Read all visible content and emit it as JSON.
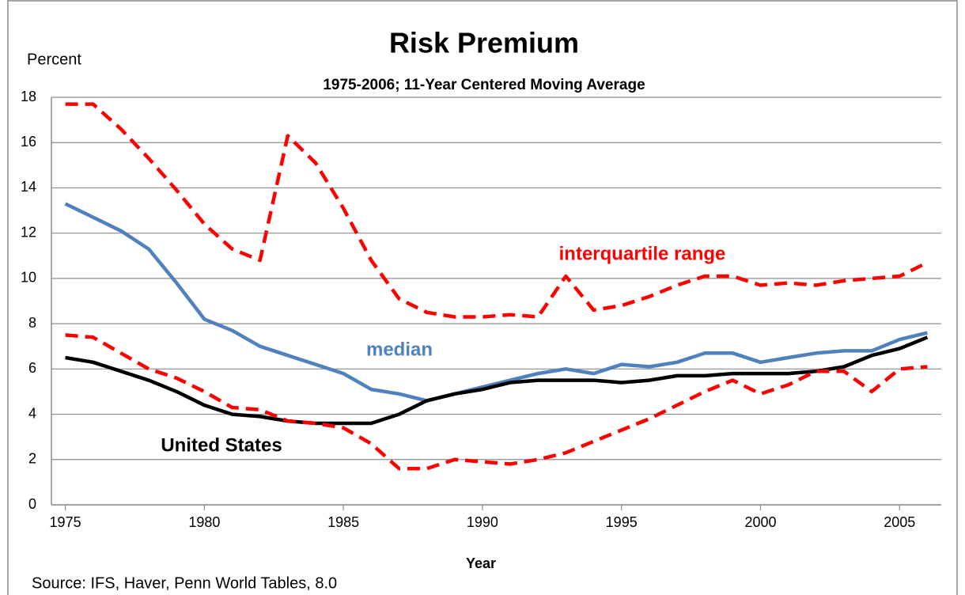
{
  "chart_data": {
    "type": "line",
    "title": "Risk Premium",
    "subtitle": "1975-2006; 11-Year Centered Moving Average",
    "y_axis_label": "Percent",
    "x_axis_label": "Year",
    "source": "Source: IFS, Haver, Penn World Tables, 8.0",
    "x": [
      1975,
      1976,
      1977,
      1978,
      1979,
      1980,
      1981,
      1982,
      1983,
      1984,
      1985,
      1986,
      1987,
      1988,
      1989,
      1990,
      1991,
      1992,
      1993,
      1994,
      1995,
      1996,
      1997,
      1998,
      1999,
      2000,
      2001,
      2002,
      2003,
      2004,
      2005,
      2006
    ],
    "xlim": [
      1974.5,
      2006.5
    ],
    "xticks": [
      1975,
      1980,
      1985,
      1990,
      1995,
      2000,
      2005
    ],
    "ylim": [
      0,
      18
    ],
    "yticks": [
      0,
      2,
      4,
      6,
      8,
      10,
      12,
      14,
      16,
      18
    ],
    "grid": true,
    "series": [
      {
        "name": "interquartile range",
        "color": "#ff0000",
        "dashed": true,
        "values": [
          17.7,
          17.7,
          16.6,
          15.3,
          13.9,
          12.4,
          11.3,
          10.8,
          16.3,
          15.1,
          13.1,
          10.8,
          9.1,
          8.5,
          8.3,
          8.3,
          8.4,
          8.3,
          10.1,
          8.6,
          8.8,
          9.2,
          9.7,
          10.1,
          10.1,
          9.7,
          9.8,
          9.7,
          9.9,
          10.0,
          10.1,
          10.7
        ]
      },
      {
        "name": "median",
        "color": "#4f81bd",
        "dashed": false,
        "values": [
          13.3,
          12.7,
          12.1,
          11.3,
          9.8,
          8.2,
          7.7,
          7.0,
          6.6,
          6.2,
          5.8,
          5.1,
          4.9,
          4.6,
          4.9,
          5.2,
          5.5,
          5.8,
          6.0,
          5.8,
          6.2,
          6.1,
          6.3,
          6.7,
          6.7,
          6.3,
          6.5,
          6.7,
          6.8,
          6.8,
          7.3,
          7.6
        ]
      },
      {
        "name": "United States",
        "color": "#000000",
        "dashed": false,
        "values": [
          6.5,
          6.3,
          5.9,
          5.5,
          5.0,
          4.4,
          4.0,
          3.9,
          3.7,
          3.6,
          3.6,
          3.6,
          4.0,
          4.6,
          4.9,
          5.1,
          5.4,
          5.5,
          5.5,
          5.5,
          5.4,
          5.5,
          5.7,
          5.7,
          5.8,
          5.8,
          5.8,
          5.9,
          6.1,
          6.6,
          6.9,
          7.4
        ]
      },
      {
        "color": "#ff0000",
        "dashed": true,
        "values": [
          7.5,
          7.4,
          6.7,
          6.0,
          5.6,
          5.0,
          4.3,
          4.2,
          3.7,
          3.6,
          3.4,
          2.7,
          1.6,
          1.6,
          2.0,
          1.9,
          1.8,
          2.0,
          2.3,
          2.8,
          3.3,
          3.8,
          4.4,
          5.0,
          5.5,
          4.9,
          5.3,
          5.9,
          5.9,
          5.0,
          6.0,
          6.1
        ]
      }
    ]
  }
}
